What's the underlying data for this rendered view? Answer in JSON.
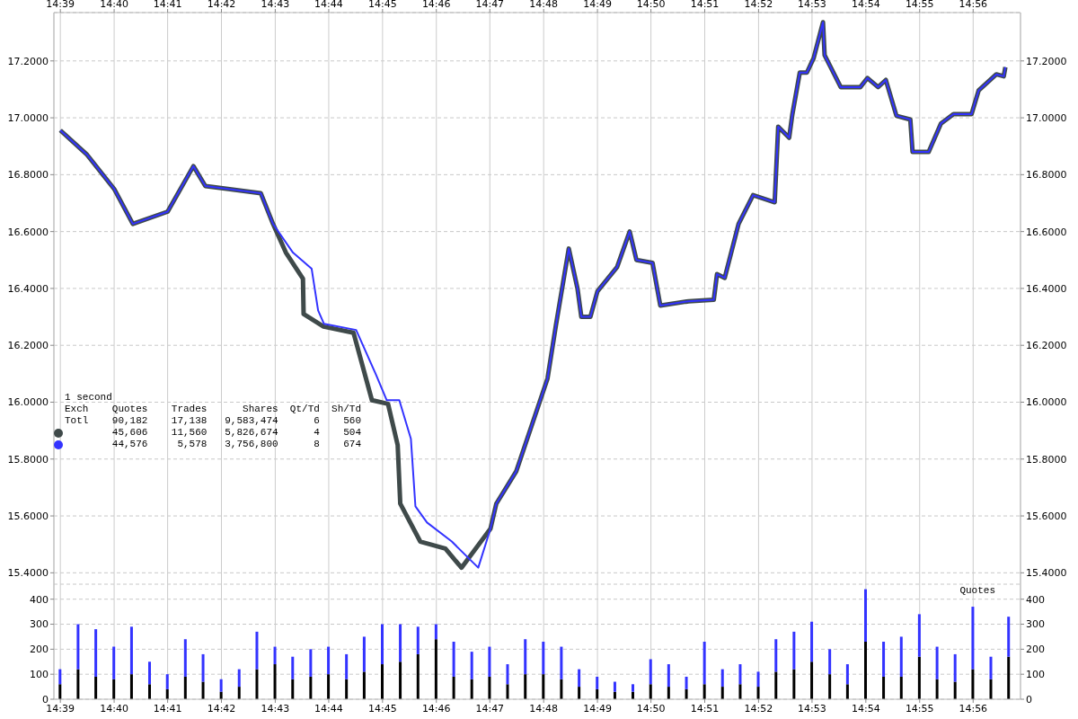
{
  "chart_data": [
    {
      "type": "line",
      "xlim": [
        14.648,
        14.948
      ],
      "xticks": [
        {
          "value": 14.65,
          "label": "14:39"
        },
        {
          "value": 14.6667,
          "label": "14:40"
        },
        {
          "value": 14.6833,
          "label": "14:41"
        },
        {
          "value": 14.7,
          "label": "14:42"
        },
        {
          "value": 14.7167,
          "label": "14:43"
        },
        {
          "value": 14.7333,
          "label": "14:44"
        },
        {
          "value": 14.75,
          "label": "14:45"
        },
        {
          "value": 14.7667,
          "label": "14:46"
        },
        {
          "value": 14.7833,
          "label": "14:47"
        },
        {
          "value": 14.8,
          "label": "14:48"
        },
        {
          "value": 14.8167,
          "label": "14:49"
        },
        {
          "value": 14.8333,
          "label": "14:50"
        },
        {
          "value": 14.85,
          "label": "14:51"
        },
        {
          "value": 14.8667,
          "label": "14:52"
        },
        {
          "value": 14.8833,
          "label": "14:53"
        },
        {
          "value": 14.9,
          "label": "14:54"
        },
        {
          "value": 14.9167,
          "label": "14:55"
        },
        {
          "value": 14.9333,
          "label": "14:56"
        }
      ],
      "ylim": [
        15.36,
        17.37
      ],
      "yticks": [
        {
          "value": 15.4,
          "label": "15.4000"
        },
        {
          "value": 15.6,
          "label": "15.6000"
        },
        {
          "value": 15.8,
          "label": "15.8000"
        },
        {
          "value": 16.0,
          "label": "16.0000"
        },
        {
          "value": 16.2,
          "label": "16.2000"
        },
        {
          "value": 16.4,
          "label": "16.4000"
        },
        {
          "value": 16.6,
          "label": "16.6000"
        },
        {
          "value": 16.8,
          "label": "16.8000"
        },
        {
          "value": 17.0,
          "label": "17.0000"
        },
        {
          "value": 17.2,
          "label": "17.2000"
        }
      ],
      "y2lim": [
        15.36,
        17.37
      ],
      "y2ticks": [
        {
          "value": 15.4,
          "label": "15.4000"
        },
        {
          "value": 15.6,
          "label": "15.6000"
        },
        {
          "value": 15.8,
          "label": "15.8000"
        },
        {
          "value": 16.0,
          "label": "16.0000"
        },
        {
          "value": 16.2,
          "label": "16.2000"
        },
        {
          "value": 16.4,
          "label": "16.4000"
        },
        {
          "value": 16.6,
          "label": "16.6000"
        },
        {
          "value": 16.8,
          "label": "16.8000"
        },
        {
          "value": 17.0,
          "label": "17.0000"
        },
        {
          "value": 17.2,
          "label": "17.2000"
        }
      ],
      "grid": true,
      "legend": false,
      "annotations": [
        "1 second",
        "Exch    Quotes    Trades      Shares  Qt/Td  Sh/Td",
        "Totl    90,182    17,138   9,583,474      6    560",
        "        45,606    11,560   5,826,674      4    504",
        "        44,576     5,578   3,756,800      8    674"
      ],
      "series": [
        {
          "color": "#3f4a4a",
          "x": [
            14.65,
            14.6583,
            14.6667,
            14.6725,
            14.6833,
            14.6913,
            14.695,
            14.7122,
            14.716,
            14.72,
            14.7253,
            14.7255,
            14.7317,
            14.741,
            14.7467,
            14.7517,
            14.7547,
            14.7555,
            14.7617,
            14.7695,
            14.7745,
            14.7835,
            14.7853,
            14.7915,
            14.8012,
            14.8038,
            14.8078,
            14.8105,
            14.8117,
            14.8145,
            14.8167,
            14.8228,
            14.8267,
            14.8288,
            14.8338,
            14.8362,
            14.845,
            14.8528,
            14.8538,
            14.8562,
            14.8605,
            14.865,
            14.8717,
            14.8728,
            14.8762,
            14.8772,
            14.8795,
            14.8817,
            14.8838,
            14.8867,
            14.8872,
            14.8922,
            14.8983,
            14.9005,
            14.9038,
            14.9062,
            14.9095,
            14.9138,
            14.9145,
            14.9195,
            14.9233,
            14.9272,
            14.9328,
            14.935,
            14.9405,
            14.9428,
            14.9433
          ],
          "values": [
            16.956,
            16.87,
            16.75,
            16.627,
            16.67,
            16.83,
            16.76,
            16.735,
            16.627,
            16.526,
            16.434,
            16.31,
            16.266,
            16.244,
            16.007,
            15.994,
            15.849,
            15.643,
            15.51,
            15.485,
            15.418,
            15.555,
            15.643,
            15.757,
            16.083,
            16.27,
            16.54,
            16.4,
            16.3,
            16.3,
            16.39,
            16.475,
            16.6,
            16.5,
            16.49,
            16.34,
            16.355,
            16.36,
            16.45,
            16.437,
            16.627,
            16.728,
            16.703,
            16.969,
            16.93,
            17.013,
            17.159,
            17.159,
            17.21,
            17.336,
            17.22,
            17.108,
            17.108,
            17.14,
            17.108,
            17.133,
            17.007,
            16.994,
            16.88,
            16.88,
            16.98,
            17.013,
            17.013,
            17.096,
            17.153,
            17.146,
            17.178
          ]
        },
        {
          "color": "#3333ff",
          "x": [
            14.65,
            14.6583,
            14.6667,
            14.6725,
            14.6833,
            14.6913,
            14.695,
            14.7122,
            14.716,
            14.7222,
            14.728,
            14.73,
            14.7318,
            14.7418,
            14.748,
            14.7513,
            14.7552,
            14.7588,
            14.7602,
            14.7638,
            14.7715,
            14.7797,
            14.7835,
            14.7853,
            14.7915,
            14.8012,
            14.8038,
            14.8078,
            14.8105,
            14.8117,
            14.8145,
            14.8167,
            14.8228,
            14.8267,
            14.8288,
            14.8338,
            14.8362,
            14.845,
            14.8528,
            14.8538,
            14.8562,
            14.8605,
            14.865,
            14.8717,
            14.8728,
            14.8762,
            14.8772,
            14.8795,
            14.8817,
            14.8838,
            14.8867,
            14.8872,
            14.8922,
            14.8983,
            14.9005,
            14.9038,
            14.9062,
            14.9095,
            14.9138,
            14.9145,
            14.9195,
            14.9233,
            14.9272,
            14.9328,
            14.935,
            14.9405,
            14.9428,
            14.9433
          ],
          "values": [
            16.956,
            16.87,
            16.75,
            16.627,
            16.67,
            16.83,
            16.76,
            16.735,
            16.627,
            16.526,
            16.469,
            16.323,
            16.276,
            16.254,
            16.096,
            16.007,
            16.007,
            15.871,
            15.634,
            15.577,
            15.51,
            15.418,
            15.555,
            15.643,
            15.757,
            16.083,
            16.27,
            16.54,
            16.4,
            16.3,
            16.3,
            16.39,
            16.475,
            16.6,
            16.5,
            16.49,
            16.34,
            16.355,
            16.36,
            16.45,
            16.437,
            16.627,
            16.728,
            16.703,
            16.969,
            16.93,
            17.013,
            17.159,
            17.159,
            17.21,
            17.336,
            17.22,
            17.108,
            17.108,
            17.14,
            17.108,
            17.133,
            17.007,
            16.994,
            16.88,
            16.88,
            16.98,
            17.013,
            17.013,
            17.096,
            17.153,
            17.146,
            17.178
          ]
        }
      ]
    },
    {
      "type": "bar",
      "annotations": [
        "Quotes"
      ],
      "stacked": true,
      "xlim": [
        14.648,
        14.948
      ],
      "xticks": [
        {
          "value": 14.65,
          "label": "14:39"
        },
        {
          "value": 14.6667,
          "label": "14:40"
        },
        {
          "value": 14.6833,
          "label": "14:41"
        },
        {
          "value": 14.7,
          "label": "14:42"
        },
        {
          "value": 14.7167,
          "label": "14:43"
        },
        {
          "value": 14.7333,
          "label": "14:44"
        },
        {
          "value": 14.75,
          "label": "14:45"
        },
        {
          "value": 14.7667,
          "label": "14:46"
        },
        {
          "value": 14.7833,
          "label": "14:47"
        },
        {
          "value": 14.8,
          "label": "14:48"
        },
        {
          "value": 14.8167,
          "label": "14:49"
        },
        {
          "value": 14.8333,
          "label": "14:50"
        },
        {
          "value": 14.85,
          "label": "14:51"
        },
        {
          "value": 14.8667,
          "label": "14:52"
        },
        {
          "value": 14.8833,
          "label": "14:53"
        },
        {
          "value": 14.9,
          "label": "14:54"
        },
        {
          "value": 14.9167,
          "label": "14:55"
        },
        {
          "value": 14.9333,
          "label": "14:56"
        }
      ],
      "ylim": [
        0,
        460
      ],
      "yticks": [
        0,
        100,
        200,
        300,
        400
      ],
      "y2lim": [
        0,
        460
      ],
      "y2ticks": [
        0,
        100,
        200,
        300,
        400
      ],
      "grid": true,
      "legend": false,
      "x": [
        14.65,
        14.6556,
        14.6611,
        14.6667,
        14.6722,
        14.6778,
        14.6833,
        14.6889,
        14.6944,
        14.7,
        14.7056,
        14.7111,
        14.7167,
        14.7222,
        14.7278,
        14.7333,
        14.7389,
        14.7444,
        14.75,
        14.7556,
        14.7611,
        14.7667,
        14.7722,
        14.7778,
        14.7833,
        14.7889,
        14.7944,
        14.8,
        14.8056,
        14.8111,
        14.8167,
        14.8222,
        14.8278,
        14.8333,
        14.8389,
        14.8444,
        14.85,
        14.8556,
        14.8611,
        14.8667,
        14.8722,
        14.8778,
        14.8833,
        14.8889,
        14.8944,
        14.9,
        14.9056,
        14.9111,
        14.9167,
        14.9222,
        14.9278,
        14.9333,
        14.9389,
        14.9444
      ],
      "series": [
        {
          "color": "#000000",
          "values": [
            60,
            120,
            90,
            80,
            100,
            60,
            40,
            90,
            70,
            30,
            50,
            120,
            140,
            80,
            90,
            100,
            80,
            110,
            140,
            150,
            180,
            240,
            90,
            80,
            90,
            60,
            100,
            100,
            80,
            50,
            40,
            30,
            30,
            60,
            50,
            40,
            60,
            50,
            60,
            50,
            110,
            120,
            150,
            100,
            60,
            230,
            90,
            90,
            170,
            80,
            70,
            120,
            80,
            170
          ]
        },
        {
          "color": "#3333ff",
          "values": [
            60,
            180,
            190,
            130,
            190,
            90,
            60,
            150,
            110,
            50,
            70,
            150,
            70,
            90,
            110,
            110,
            100,
            140,
            160,
            150,
            110,
            60,
            140,
            110,
            120,
            80,
            140,
            130,
            130,
            70,
            50,
            40,
            30,
            100,
            90,
            50,
            170,
            70,
            80,
            60,
            130,
            150,
            160,
            100,
            80,
            210,
            140,
            160,
            170,
            130,
            110,
            250,
            90,
            160
          ]
        }
      ]
    }
  ]
}
